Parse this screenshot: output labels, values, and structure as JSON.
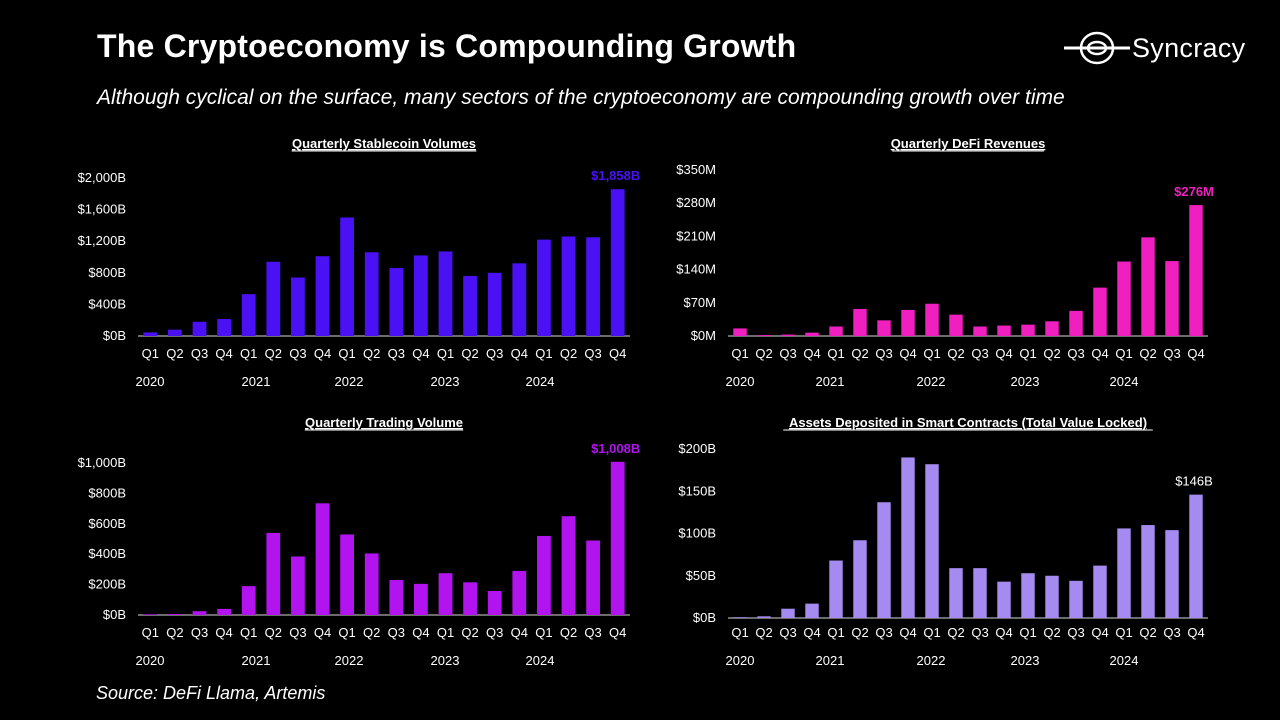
{
  "header": {
    "title": "The Cryptoeconomy is Compounding Growth",
    "subtitle": "Although cyclical on the surface, many sectors of the cryptoeconomy are compounding growth over time"
  },
  "logo": {
    "text": "Syncracy"
  },
  "source": "Source: DeFi Llama, Artemis",
  "chart_data": [
    {
      "type": "bar",
      "title": "Quarterly Stablecoin Volumes",
      "categories": [
        "Q1",
        "Q2",
        "Q3",
        "Q4",
        "Q1",
        "Q2",
        "Q3",
        "Q4",
        "Q1",
        "Q2",
        "Q3",
        "Q4",
        "Q1",
        "Q2",
        "Q3",
        "Q4",
        "Q1",
        "Q2",
        "Q3",
        "Q4"
      ],
      "years": [
        "2020",
        "2021",
        "2022",
        "2023",
        "2024"
      ],
      "values": [
        45,
        80,
        180,
        215,
        530,
        940,
        740,
        1010,
        1500,
        1060,
        860,
        1020,
        1070,
        760,
        800,
        920,
        1220,
        1260,
        1250,
        1858
      ],
      "yticks": [
        "$0B",
        "$400B",
        "$800B",
        "$1,200B",
        "$1,600B",
        "$2,000B"
      ],
      "ylim": [
        0,
        2000
      ],
      "color": "#4a11f5",
      "last_label": "$1,858B",
      "last_label_color": "#4a11f5"
    },
    {
      "type": "bar",
      "title": "Quarterly DeFi Revenues",
      "categories": [
        "Q1",
        "Q2",
        "Q3",
        "Q4",
        "Q1",
        "Q2",
        "Q3",
        "Q4",
        "Q1",
        "Q2",
        "Q3",
        "Q4",
        "Q1",
        "Q2",
        "Q3",
        "Q4",
        "Q1",
        "Q2",
        "Q3",
        "Q4"
      ],
      "years": [
        "2020",
        "2021",
        "2022",
        "2023",
        "2024"
      ],
      "values": [
        16,
        2,
        3,
        7,
        20,
        57,
        33,
        55,
        68,
        45,
        20,
        22,
        24,
        31,
        53,
        102,
        157,
        208,
        158,
        276
      ],
      "yticks": [
        "$0M",
        "$70M",
        "$140M",
        "$210M",
        "$280M",
        "$350M"
      ],
      "ylim": [
        0,
        350
      ],
      "color": "#f020c0",
      "last_label": "$276M",
      "last_label_color": "#f020c0"
    },
    {
      "type": "bar",
      "title": "Quarterly Trading Volume",
      "categories": [
        "Q1",
        "Q2",
        "Q3",
        "Q4",
        "Q1",
        "Q2",
        "Q3",
        "Q4",
        "Q1",
        "Q2",
        "Q3",
        "Q4",
        "Q1",
        "Q2",
        "Q3",
        "Q4",
        "Q1",
        "Q2",
        "Q3",
        "Q4"
      ],
      "years": [
        "2020",
        "2021",
        "2022",
        "2023",
        "2024"
      ],
      "values": [
        5,
        7,
        25,
        40,
        190,
        540,
        385,
        735,
        530,
        405,
        230,
        205,
        275,
        215,
        158,
        290,
        520,
        650,
        490,
        1008
      ],
      "yticks": [
        "$0B",
        "$200B",
        "$400B",
        "$600B",
        "$800B",
        "$1,000B"
      ],
      "ylim": [
        0,
        1000
      ],
      "color": "#b114ef",
      "last_label": "$1,008B",
      "last_label_color": "#b114ef"
    },
    {
      "type": "bar",
      "title": "Assets Deposited in Smart Contracts (Total Value Locked)",
      "categories": [
        "Q1",
        "Q2",
        "Q3",
        "Q4",
        "Q1",
        "Q2",
        "Q3",
        "Q4",
        "Q1",
        "Q2",
        "Q3",
        "Q4",
        "Q1",
        "Q2",
        "Q3",
        "Q4",
        "Q1",
        "Q2",
        "Q3",
        "Q4"
      ],
      "years": [
        "2020",
        "2021",
        "2022",
        "2023",
        "2024"
      ],
      "values": [
        1,
        2,
        11,
        17,
        68,
        92,
        137,
        190,
        182,
        59,
        59,
        43,
        53,
        50,
        44,
        62,
        106,
        110,
        104,
        146
      ],
      "yticks": [
        "$0B",
        "$50B",
        "$100B",
        "$150B",
        "$200B"
      ],
      "ylim": [
        0,
        200
      ],
      "color": "#a58bf0",
      "last_label": "$146B",
      "last_label_color": "#ffffff"
    }
  ]
}
